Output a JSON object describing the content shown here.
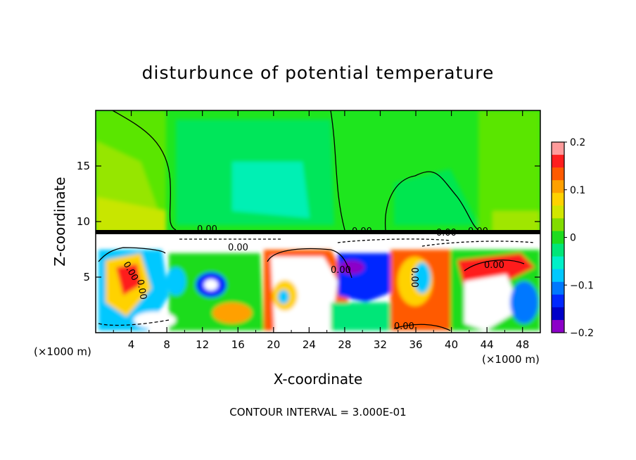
{
  "chart_data": {
    "type": "heatmap",
    "title": "disturbunce of potential temperature",
    "xlabel": "X-coordinate",
    "ylabel": "Z-coordinate",
    "x_unit_left": "(×1000 m)",
    "x_unit_right": "(×1000 m)",
    "xlim": [
      0,
      50
    ],
    "ylim": [
      0,
      20
    ],
    "xticks": [
      4,
      8,
      12,
      16,
      20,
      24,
      28,
      32,
      36,
      40,
      44,
      48
    ],
    "yticks": [
      5,
      10,
      15
    ],
    "colorbar": {
      "range": [
        -0.2,
        0.2
      ],
      "ticks": [
        "0.2",
        "0.1",
        "0",
        "−0.1",
        "−0.2"
      ],
      "tick_values": [
        0.2,
        0.1,
        0,
        -0.1,
        -0.2
      ],
      "colors": [
        "#ff9b9b",
        "#ff1e1e",
        "#ff5a00",
        "#ffa000",
        "#ffd200",
        "#d2e600",
        "#82dc00",
        "#1edc1e",
        "#00e678",
        "#00f0c8",
        "#00c8ff",
        "#0078ff",
        "#0028ff",
        "#0000c8",
        "#8c00c8"
      ]
    },
    "contour_labels": [
      "0.00",
      "0.00",
      "0.00",
      "0.00",
      "0.00",
      "0.00",
      "0.00",
      "0.00",
      "0.00",
      "0.00",
      "0.00"
    ],
    "contour_interval_text": "CONTOUR INTERVAL = 3.000E-01"
  }
}
